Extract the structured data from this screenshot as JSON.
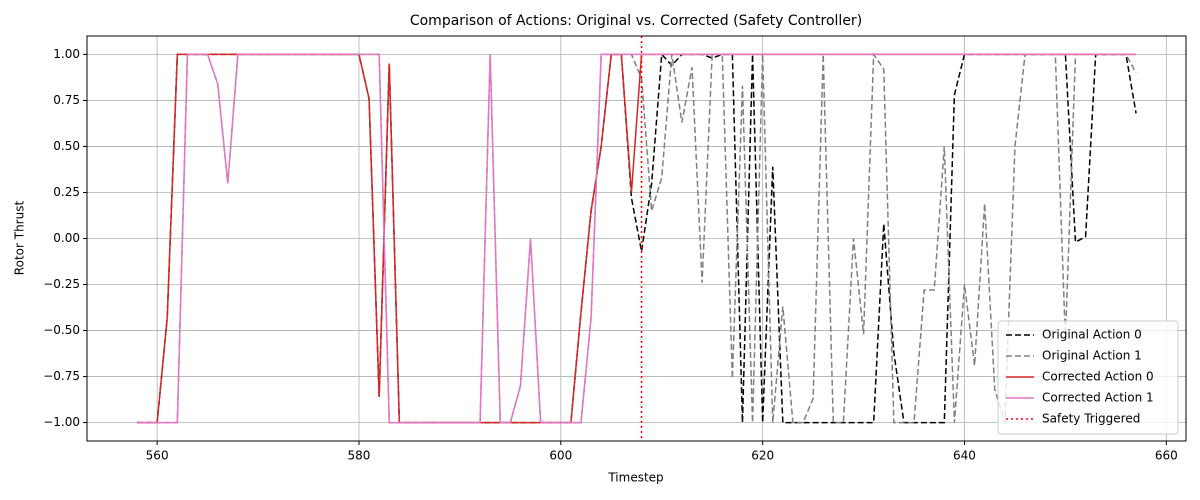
{
  "chart_data": {
    "type": "line",
    "title": "Comparison of Actions: Original vs. Corrected (Safety Controller)",
    "xlabel": "Timestep",
    "ylabel": "Rotor Thrust",
    "x": [
      558,
      559,
      560,
      561,
      562,
      563,
      564,
      565,
      566,
      567,
      568,
      569,
      570,
      571,
      572,
      573,
      574,
      575,
      576,
      577,
      578,
      579,
      580,
      581,
      582,
      583,
      584,
      585,
      586,
      587,
      588,
      589,
      590,
      591,
      592,
      593,
      594,
      595,
      596,
      597,
      598,
      599,
      600,
      601,
      602,
      603,
      604,
      605,
      606,
      607,
      608,
      609,
      610,
      611,
      612,
      613,
      614,
      615,
      616,
      617,
      618,
      619,
      620,
      621,
      622,
      623,
      624,
      625,
      626,
      627,
      628,
      629,
      630,
      631,
      632,
      633,
      634,
      635,
      636,
      637,
      638,
      639,
      640,
      641,
      642,
      643,
      644,
      645,
      646,
      647,
      648,
      649,
      650,
      651,
      652,
      653,
      654,
      655,
      656,
      657
    ],
    "series": [
      {
        "name": "Original Action 0",
        "color": "#000000",
        "dash": "6,3",
        "values": [
          -1,
          -1,
          -1,
          -0.43,
          1,
          1,
          1,
          1,
          1,
          1,
          1,
          1,
          1,
          1,
          1,
          1,
          1,
          1,
          1,
          1,
          1,
          1,
          1,
          0.76,
          -0.86,
          0.95,
          -1,
          -1,
          -1,
          -1,
          -1,
          -1,
          -1,
          -1,
          -1,
          -1,
          -1,
          -1,
          -1,
          -1,
          -1,
          -1,
          -1,
          -1,
          -0.4,
          0.15,
          0.5,
          1,
          1,
          0.22,
          -0.07,
          0.3,
          1,
          0.94,
          1,
          1,
          1,
          0.98,
          1,
          1,
          -1,
          1,
          -1,
          0.39,
          -1,
          -1,
          -1,
          -1,
          -1,
          -1,
          -1,
          -1,
          -1,
          -1,
          0.08,
          -0.62,
          -1,
          -1,
          -1,
          -1,
          -1,
          0.78,
          1,
          1,
          1,
          1,
          1,
          1,
          1,
          1,
          1,
          1,
          1,
          -0.02,
          0.01,
          1,
          1,
          1,
          1,
          0.68
        ]
      },
      {
        "name": "Original Action 1",
        "color": "#808080",
        "dash": "6,3",
        "values": [
          -1,
          -1,
          -1,
          -1,
          -1,
          1,
          1,
          1,
          0.84,
          0.3,
          1,
          1,
          1,
          1,
          1,
          1,
          1,
          1,
          1,
          1,
          1,
          1,
          1,
          1,
          1,
          -1,
          -1,
          -1,
          -1,
          -1,
          -1,
          -1,
          -1,
          -1,
          -1,
          1,
          -1,
          -1,
          -0.8,
          0,
          -1,
          -1,
          -1,
          -1,
          -1,
          -0.43,
          1,
          1,
          1,
          1,
          0.87,
          0.15,
          0.33,
          1,
          0.63,
          0.93,
          -0.24,
          1,
          1,
          -0.76,
          0.83,
          -1,
          1,
          -1,
          -0.37,
          -1,
          -1,
          -0.87,
          1,
          -1,
          -1,
          0,
          -0.52,
          1,
          0.92,
          -1,
          -1,
          -1,
          -0.28,
          -0.28,
          0.5,
          -1,
          -0.25,
          -0.69,
          0.19,
          -0.82,
          -1,
          0.5,
          1,
          1,
          1,
          1,
          -0.55,
          1,
          1,
          1,
          1,
          1,
          1,
          0.9
        ]
      },
      {
        "name": "Corrected Action 0",
        "color": "#d62728",
        "dash": "",
        "values": [
          -1,
          -1,
          -1,
          -0.43,
          1,
          1,
          1,
          1,
          1,
          1,
          1,
          1,
          1,
          1,
          1,
          1,
          1,
          1,
          1,
          1,
          1,
          1,
          1,
          0.76,
          -0.86,
          0.95,
          -1,
          -1,
          -1,
          -1,
          -1,
          -1,
          -1,
          -1,
          -1,
          -1,
          -1,
          -1,
          -1,
          -1,
          -1,
          -1,
          -1,
          -1,
          -0.4,
          0.15,
          0.5,
          1,
          1,
          0.25,
          1,
          1,
          1,
          1,
          1,
          1,
          1,
          1,
          1,
          1,
          1,
          1,
          1,
          1,
          1,
          1,
          1,
          1,
          1,
          1,
          1,
          1,
          1,
          1,
          1,
          1,
          1,
          1,
          1,
          1,
          1,
          1,
          1,
          1,
          1,
          1,
          1,
          1,
          1,
          1,
          1,
          1,
          1,
          1,
          1,
          1,
          1,
          1,
          1,
          1
        ]
      },
      {
        "name": "Corrected Action 1",
        "color": "#e377c2",
        "dash": "",
        "values": [
          -1,
          -1,
          -1,
          -1,
          -1,
          1,
          1,
          1,
          0.84,
          0.3,
          1,
          1,
          1,
          1,
          1,
          1,
          1,
          1,
          1,
          1,
          1,
          1,
          1,
          1,
          1,
          -1,
          -1,
          -1,
          -1,
          -1,
          -1,
          -1,
          -1,
          -1,
          -1,
          1,
          -1,
          -1,
          -0.8,
          0,
          -1,
          -1,
          -1,
          -1,
          -1,
          -0.43,
          1,
          1,
          1,
          1,
          1,
          1,
          1,
          1,
          1,
          1,
          1,
          1,
          1,
          1,
          1,
          1,
          1,
          1,
          1,
          1,
          1,
          1,
          1,
          1,
          1,
          1,
          1,
          1,
          1,
          1,
          1,
          1,
          1,
          1,
          1,
          1,
          1,
          1,
          1,
          1,
          1,
          1,
          1,
          1,
          1,
          1,
          1,
          1,
          1,
          1,
          1,
          1,
          1,
          1
        ]
      }
    ],
    "vlines": [
      {
        "name": "Safety Triggered",
        "x": 608,
        "color": "#ff0000"
      }
    ],
    "xlim": [
      553.05,
      661.95
    ],
    "ylim": [
      -1.1,
      1.1
    ],
    "xticks": [
      560,
      580,
      600,
      620,
      640,
      660
    ],
    "yticks": [
      {
        "value": -1,
        "label": "−1.00"
      },
      {
        "value": -0.75,
        "label": "−0.75"
      },
      {
        "value": -0.5,
        "label": "−0.50"
      },
      {
        "value": -0.25,
        "label": "−0.25"
      },
      {
        "value": 0,
        "label": "0.00"
      },
      {
        "value": 0.25,
        "label": "0.25"
      },
      {
        "value": 0.5,
        "label": "0.50"
      },
      {
        "value": 0.75,
        "label": "0.75"
      },
      {
        "value": 1,
        "label": "1.00"
      }
    ],
    "grid": true,
    "legend": "lower right"
  }
}
